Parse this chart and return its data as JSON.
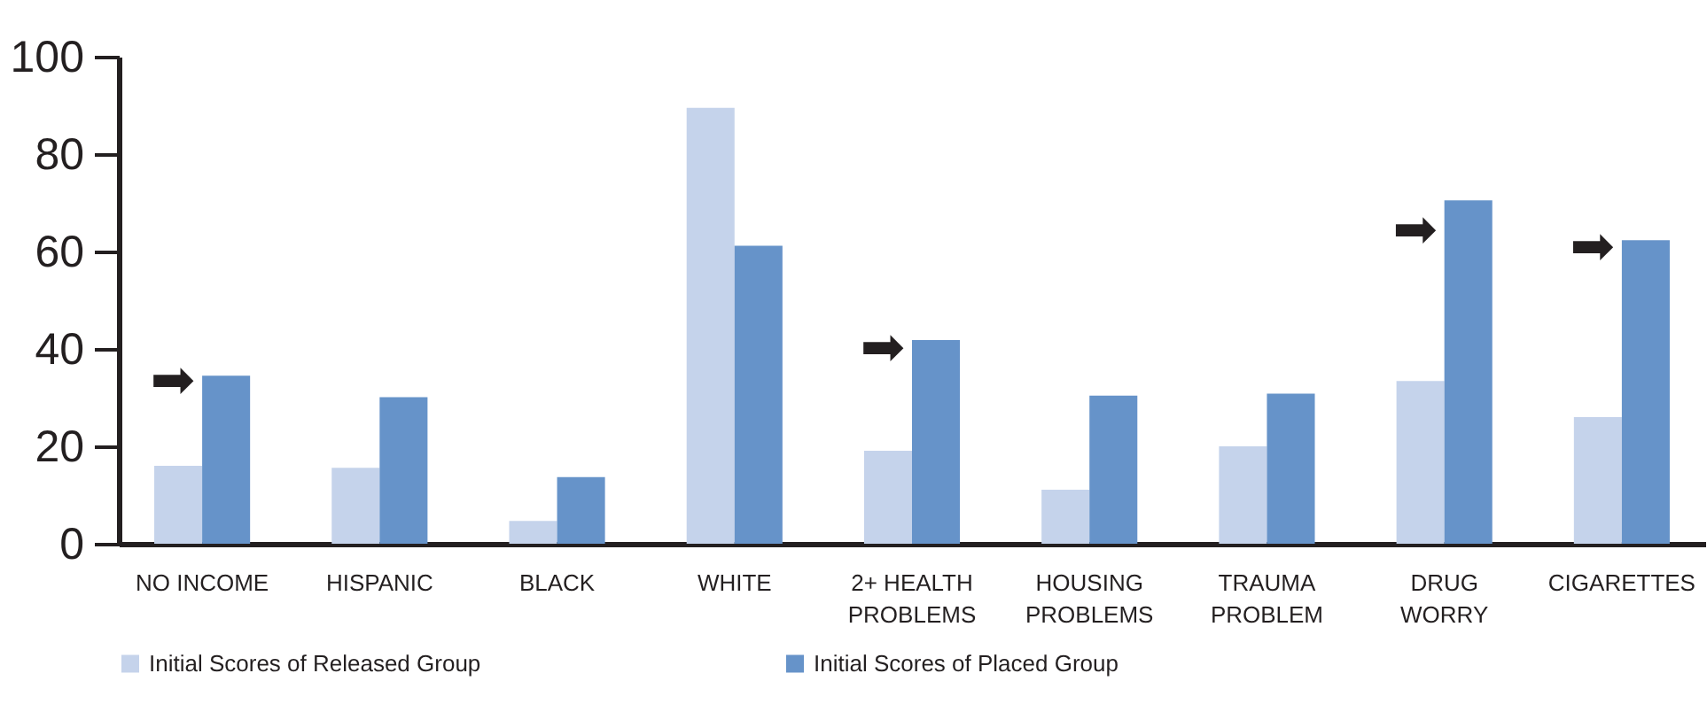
{
  "chart_data": {
    "type": "bar",
    "categories": [
      "NO INCOME",
      "HISPANIC",
      "BLACK",
      "WHITE",
      "2+ HEALTH\nPROBLEMS",
      "HOUSING\nPROBLEMS",
      "TRAUMA\nPROBLEM",
      "DRUG\nWORRY",
      "CIGARETTES"
    ],
    "series": [
      {
        "name": "Initial Scores of Released Group",
        "color": "#c5d3eb",
        "values": [
          16,
          15.6,
          4.7,
          89.5,
          19.1,
          11.1,
          20,
          33.4,
          26
        ]
      },
      {
        "name": "Initial Scores of Placed Group",
        "color": "#6693c9",
        "values": [
          34.5,
          30.1,
          13.7,
          61.2,
          41.8,
          30.4,
          30.8,
          70.5,
          62.3
        ]
      }
    ],
    "ylim": [
      0,
      100
    ],
    "yticks": [
      0,
      20,
      40,
      60,
      80,
      100
    ],
    "grid": false,
    "legend": "bottom",
    "annotations": [
      {
        "text": "➡",
        "x": "NO INCOME",
        "y": 33.3
      },
      {
        "text": "➡",
        "x": "2+ HEALTH\nPROBLEMS",
        "y": 40
      },
      {
        "text": "➡",
        "x": "DRUG\nWORRY",
        "y": 64.2
      },
      {
        "text": "➡",
        "x": "CIGARETTES",
        "y": 60.8
      }
    ]
  }
}
